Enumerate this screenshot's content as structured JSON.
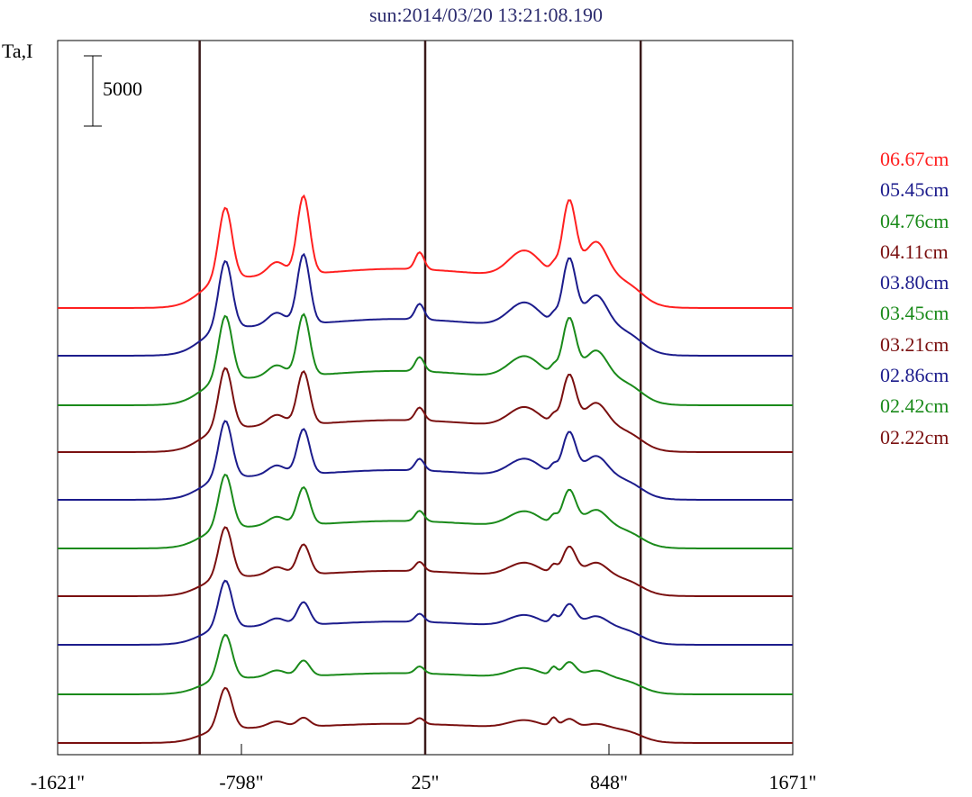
{
  "chart_data": {
    "type": "line",
    "title": "sun:2014/03/20 13:21:08.190",
    "ylabel": "Ta,I",
    "scale_bar_label": "5000",
    "scale_bar_value": 5000,
    "x_ticks": [
      "-1621\"",
      "-798\"",
      "25\"",
      "848\"",
      "1671\""
    ],
    "x_tick_values": [
      -1621,
      -798,
      25,
      848,
      1671
    ],
    "xlim": [
      -1621,
      1671
    ],
    "vertical_markers": [
      -985,
      25,
      990
    ],
    "grid": false,
    "legend_position": "right",
    "series": [
      {
        "name": "06.67cm",
        "color": "#ff2020"
      },
      {
        "name": "05.45cm",
        "color": "#1c1c8c"
      },
      {
        "name": "04.76cm",
        "color": "#1a8a1a"
      },
      {
        "name": "04.11cm",
        "color": "#7a1010"
      },
      {
        "name": "03.80cm",
        "color": "#1c1c8c"
      },
      {
        "name": "03.45cm",
        "color": "#1a8a1a"
      },
      {
        "name": "03.21cm",
        "color": "#7a1010"
      },
      {
        "name": "02.86cm",
        "color": "#1c1c8c"
      },
      {
        "name": "02.42cm",
        "color": "#1a8a1a"
      },
      {
        "name": "02.22cm",
        "color": "#7a1010"
      }
    ]
  }
}
